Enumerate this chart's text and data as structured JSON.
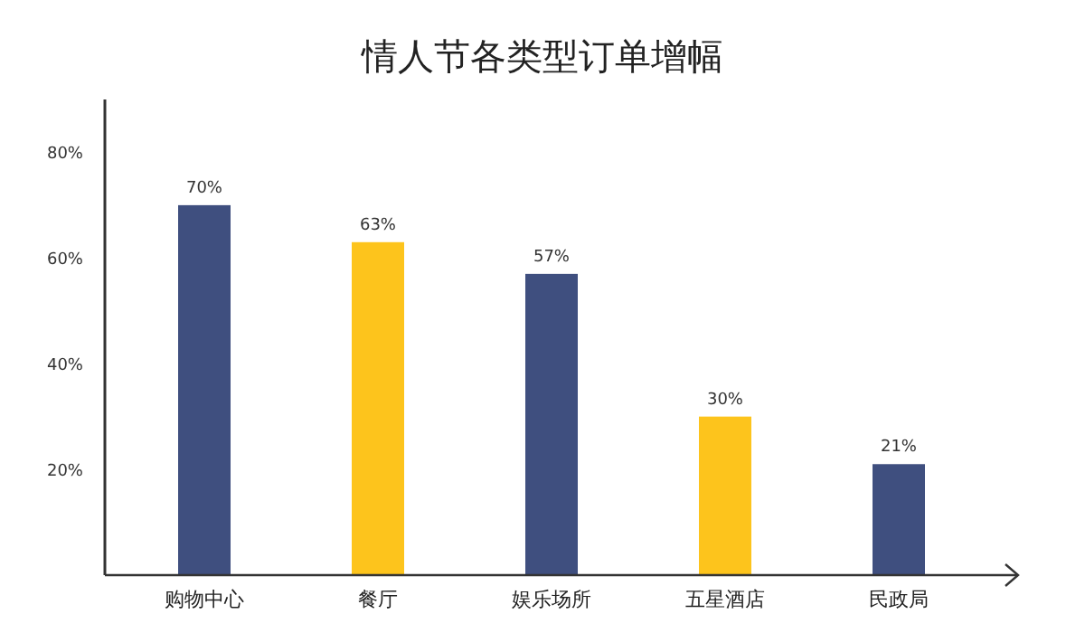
{
  "chart_data": {
    "type": "bar",
    "title": "情人节各类型订单增幅",
    "categories": [
      "购物中心",
      "餐厅",
      "娱乐场所",
      "五星酒店",
      "民政局"
    ],
    "values": [
      70,
      63,
      57,
      30,
      21
    ],
    "colors": [
      "#3f4f7f",
      "#fdc41c",
      "#3f4f7f",
      "#fdc41c",
      "#3f4f7f"
    ],
    "ylim": [
      0,
      90
    ],
    "yticks": [
      {
        "value": 20,
        "label": "20%"
      },
      {
        "value": 40,
        "label": "40%"
      },
      {
        "value": 60,
        "label": "60%"
      },
      {
        "value": 80,
        "label": "80%"
      }
    ],
    "value_labels": [
      "70%",
      "63%",
      "57%",
      "30%",
      "21%"
    ],
    "grid": false
  }
}
